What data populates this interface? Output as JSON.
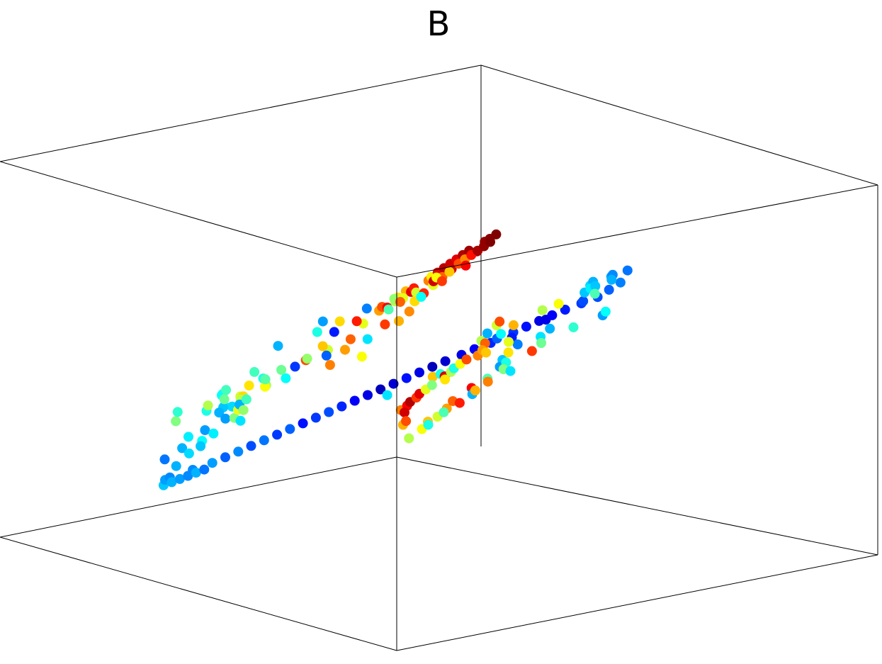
{
  "chart_data": {
    "type": "scatter",
    "title": "B",
    "projection": "3d",
    "box": true,
    "grid": false,
    "colormap": "jet",
    "point_color": "fourth value of each point, from 0 (blue) to 1 (red)",
    "x": [
      0.01,
      0.03,
      0.05,
      0.02,
      0.04,
      0.06,
      0.05,
      0.07,
      0.08,
      0.09,
      0.08,
      0.1,
      0.09,
      0.12,
      0.11,
      0.13,
      0.1,
      0.14,
      0.15,
      0.13,
      0.12,
      0.16,
      0.14,
      0.17,
      0.18,
      0.19,
      0.16,
      0.2,
      0.19,
      0.21,
      0.15,
      0.18,
      0.2,
      0.22,
      0.24,
      0.17,
      0.25,
      0.27,
      0.29,
      0.31,
      0.23,
      0.28,
      0.33,
      0.35,
      0.26,
      0.3,
      0.36,
      0.38,
      0.32,
      0.4,
      0.25,
      0.3,
      0.35,
      0.28,
      0.22,
      0.2,
      0.24,
      0.26,
      0.3,
      0.28,
      0.31,
      0.33,
      0.35,
      0.32,
      0.3,
      0.29,
      0.34,
      0.36,
      0.38,
      0.4,
      0.42,
      0.43,
      0.44,
      0.45,
      0.46,
      0.48,
      0.47,
      0.49,
      0.5,
      0.52,
      0.53,
      0.54,
      0.55,
      0.56,
      0.57,
      0.58,
      0.59,
      0.6,
      0.61,
      0.62,
      0.63,
      0.64,
      0.65,
      0.66,
      0.67,
      0.68,
      0.69,
      0.7,
      0.71,
      0.72,
      0.73,
      0.74,
      0.75,
      0.76,
      0.38,
      0.42,
      0.45,
      0.48,
      0.52,
      0.5,
      0.55,
      0.77,
      0.78,
      0.77,
      0.76,
      0.78,
      0.79,
      0.75,
      0.74,
      0.8,
      0.81,
      0.79,
      0.82,
      0.8,
      0.83,
      0.78,
      0.76,
      0.73,
      0.77,
      0.76,
      0.78,
      0.8,
      0.82,
      0.84,
      0.86,
      0.88,
      0.9,
      0.85,
      0.87,
      0.89,
      0.83,
      0.91,
      0.92,
      0.88,
      0.86,
      0.81,
      0.84,
      0.9,
      0.93,
      0.94,
      0.95,
      0.87,
      0.82,
      0.85,
      0.78,
      0.82,
      0.86,
      0.9,
      0.94,
      0.98,
      0.8,
      0.84,
      0.88,
      0.92,
      0.96,
      0.83,
      0.87,
      0.91,
      0.95,
      0.99,
      0.79,
      0.85,
      0.89,
      0.93,
      0.97,
      0.81,
      0.86,
      0.92,
      0.98,
      1.0,
      0.99,
      0.97,
      1.01,
      0.96,
      1.0,
      0.98,
      1.02,
      0.97,
      0.99,
      1.03,
      1.01,
      0.95,
      1.0,
      1.02,
      0.98,
      1.04,
      1.03,
      1.05,
      1.04,
      1.06,
      1.05,
      1.07,
      1.06,
      1.08,
      1.07,
      1.09,
      1.08,
      1.1,
      1.11,
      1.12,
      0.96,
      0.99,
      1.02,
      1.05,
      1.08,
      1.1,
      1.12,
      1.14
    ],
    "y": [
      0.02,
      0.04,
      0.06,
      0.03,
      0.08,
      0.05,
      0.1,
      0.07,
      0.12,
      0.09,
      0.14,
      0.11,
      0.16,
      0.13,
      0.18,
      0.15,
      0.2,
      0.17,
      0.22,
      0.19,
      0.24,
      0.21,
      0.26,
      0.23,
      0.28,
      0.25,
      0.3,
      0.27,
      0.32,
      0.29,
      0.34,
      0.31,
      0.36,
      0.33,
      0.38,
      0.35,
      0.4,
      0.37,
      0.42,
      0.39,
      0.44,
      0.41,
      0.46,
      0.43,
      0.48,
      0.45,
      0.5,
      0.47,
      0.52,
      0.49,
      0.54,
      0.51,
      0.56,
      0.53,
      0.58,
      0.55,
      0.6,
      0.57,
      0.62,
      0.64,
      0.66,
      0.63,
      0.65,
      0.67,
      0.61,
      0.68,
      0.7,
      0.69,
      0.68,
      0.66,
      0.64,
      0.62,
      0.6,
      0.58,
      0.56,
      0.54,
      0.52,
      0.5,
      0.48,
      0.46,
      0.44,
      0.42,
      0.4,
      0.38,
      0.36,
      0.34,
      0.32,
      0.3,
      0.28,
      0.26,
      0.24,
      0.22,
      0.2,
      0.18,
      0.16,
      0.14,
      0.12,
      0.1,
      0.09,
      0.08,
      0.07,
      0.06,
      0.05,
      0.04,
      0.65,
      0.6,
      0.55,
      0.5,
      0.45,
      0.42,
      0.36,
      0.06,
      0.08,
      0.1,
      0.12,
      0.14,
      0.09,
      0.11,
      0.13,
      0.07,
      0.1,
      0.15,
      0.12,
      0.16,
      0.14,
      0.18,
      0.17,
      0.08,
      0.05,
      0.2,
      0.22,
      0.24,
      0.21,
      0.25,
      0.23,
      0.27,
      0.26,
      0.28,
      0.24,
      0.29,
      0.3,
      0.27,
      0.31,
      0.33,
      0.32,
      0.19,
      0.34,
      0.35,
      0.3,
      0.33,
      0.36,
      0.37,
      0.38,
      0.26,
      0.4,
      0.42,
      0.44,
      0.41,
      0.46,
      0.43,
      0.48,
      0.45,
      0.5,
      0.47,
      0.52,
      0.49,
      0.54,
      0.51,
      0.56,
      0.53,
      0.55,
      0.57,
      0.59,
      0.58,
      0.6,
      0.61,
      0.62,
      0.63,
      0.64,
      0.66,
      0.68,
      0.65,
      0.7,
      0.67,
      0.72,
      0.69,
      0.74,
      0.71,
      0.76,
      0.73,
      0.78,
      0.75,
      0.8,
      0.77,
      0.82,
      0.79,
      0.84,
      0.81,
      0.86,
      0.83,
      0.88,
      0.85,
      0.9,
      0.87,
      0.92,
      0.89,
      0.94,
      0.91,
      0.96,
      0.98,
      0.7,
      0.74,
      0.78,
      0.82,
      0.86,
      0.9,
      0.94,
      0.97
    ],
    "z": [
      0.1,
      0.12,
      0.08,
      0.14,
      0.11,
      0.16,
      0.13,
      0.18,
      0.15,
      0.2,
      0.17,
      0.22,
      0.19,
      0.24,
      0.21,
      0.26,
      0.23,
      0.28,
      0.25,
      0.3,
      0.27,
      0.32,
      0.29,
      0.34,
      0.31,
      0.36,
      0.33,
      0.38,
      0.35,
      0.4,
      0.37,
      0.42,
      0.39,
      0.44,
      0.41,
      0.46,
      0.43,
      0.48,
      0.45,
      0.5,
      0.47,
      0.52,
      0.49,
      0.54,
      0.51,
      0.56,
      0.53,
      0.58,
      0.55,
      0.6,
      0.57,
      0.62,
      0.59,
      0.64,
      0.61,
      0.66,
      0.63,
      0.68,
      0.72,
      0.74,
      0.76,
      0.73,
      0.75,
      0.77,
      0.71,
      0.78,
      0.76,
      0.74,
      0.72,
      0.7,
      0.68,
      0.66,
      0.64,
      0.62,
      0.6,
      0.58,
      0.56,
      0.54,
      0.52,
      0.5,
      0.48,
      0.46,
      0.44,
      0.42,
      0.4,
      0.38,
      0.36,
      0.34,
      0.32,
      0.3,
      0.28,
      0.26,
      0.24,
      0.22,
      0.2,
      0.18,
      0.16,
      0.14,
      0.12,
      0.11,
      0.1,
      0.09,
      0.08,
      0.07,
      0.7,
      0.64,
      0.58,
      0.52,
      0.46,
      0.44,
      0.38,
      0.1,
      0.14,
      0.18,
      0.22,
      0.26,
      0.3,
      0.2,
      0.24,
      0.16,
      0.28,
      0.32,
      0.21,
      0.34,
      0.25,
      0.36,
      0.38,
      0.12,
      0.09,
      0.3,
      0.34,
      0.38,
      0.32,
      0.36,
      0.4,
      0.35,
      0.42,
      0.44,
      0.37,
      0.41,
      0.46,
      0.39,
      0.43,
      0.48,
      0.45,
      0.33,
      0.5,
      0.47,
      0.4,
      0.44,
      0.52,
      0.49,
      0.54,
      0.38,
      0.52,
      0.56,
      0.6,
      0.54,
      0.58,
      0.62,
      0.57,
      0.64,
      0.61,
      0.66,
      0.63,
      0.68,
      0.65,
      0.7,
      0.67,
      0.72,
      0.69,
      0.74,
      0.71,
      0.76,
      0.73,
      0.78,
      0.75,
      0.8,
      0.78,
      0.8,
      0.82,
      0.79,
      0.84,
      0.81,
      0.86,
      0.83,
      0.88,
      0.85,
      0.9,
      0.87,
      0.92,
      0.89,
      0.94,
      0.91,
      0.96,
      0.93,
      0.98,
      0.95,
      1.0,
      0.97,
      1.02,
      0.99,
      1.04,
      1.01,
      1.06,
      1.03,
      1.08,
      1.05,
      1.1,
      1.12,
      0.82,
      0.86,
      0.9,
      0.94,
      0.98,
      1.02,
      1.06,
      1.1
    ],
    "c": [
      0.7,
      0.8,
      0.55,
      0.92,
      0.62,
      0.75,
      0.4,
      0.88,
      0.68,
      0.95,
      0.58,
      0.82,
      0.45,
      0.9,
      0.72,
      0.6,
      0.85,
      0.5,
      0.78,
      0.65,
      0.3,
      0.92,
      0.7,
      0.55,
      0.88,
      0.4,
      0.75,
      0.62,
      0.45,
      0.8,
      0.35,
      0.68,
      0.5,
      0.72,
      0.28,
      0.6,
      0.4,
      0.78,
      0.32,
      0.55,
      0.82,
      0.38,
      0.65,
      0.3,
      0.48,
      0.7,
      0.25,
      0.58,
      0.35,
      0.8,
      0.42,
      0.55,
      0.3,
      0.62,
      0.28,
      0.45,
      0.38,
      0.32,
      0.32,
      0.3,
      0.28,
      0.34,
      0.3,
      0.26,
      0.36,
      0.24,
      0.25,
      0.22,
      0.2,
      0.18,
      0.15,
      0.12,
      0.1,
      0.14,
      0.18,
      0.22,
      0.16,
      0.12,
      0.1,
      0.08,
      0.06,
      0.1,
      0.14,
      0.08,
      0.06,
      0.1,
      0.12,
      0.16,
      0.2,
      0.18,
      0.14,
      0.22,
      0.18,
      0.24,
      0.2,
      0.26,
      0.22,
      0.28,
      0.24,
      0.3,
      0.26,
      0.28,
      0.3,
      0.32,
      0.2,
      0.1,
      0.15,
      0.75,
      0.4,
      0.68,
      0.35,
      0.26,
      0.3,
      0.34,
      0.38,
      0.28,
      0.42,
      0.32,
      0.36,
      0.24,
      0.5,
      0.4,
      0.3,
      0.55,
      0.36,
      0.48,
      0.44,
      0.26,
      0.28,
      0.35,
      0.52,
      0.44,
      0.28,
      0.6,
      0.38,
      0.5,
      0.42,
      0.65,
      0.32,
      0.56,
      0.46,
      0.36,
      0.58,
      0.4,
      0.62,
      0.3,
      0.48,
      0.54,
      0.34,
      0.66,
      0.44,
      0.38,
      0.52,
      0.3,
      0.75,
      0.22,
      0.68,
      0.18,
      0.8,
      0.3,
      0.62,
      0.15,
      0.72,
      0.4,
      0.58,
      0.85,
      0.35,
      0.66,
      0.78,
      0.28,
      0.7,
      0.45,
      0.82,
      0.25,
      0.6,
      0.38,
      0.74,
      0.52,
      0.72,
      0.8,
      0.55,
      0.88,
      0.65,
      0.78,
      0.9,
      0.6,
      0.85,
      0.58,
      0.92,
      0.7,
      0.62,
      0.82,
      0.68,
      0.75,
      0.88,
      0.64,
      0.8,
      0.9,
      0.74,
      0.94,
      0.86,
      0.92,
      0.96,
      0.9,
      0.98,
      0.95,
      1.0,
      0.97,
      0.99,
      1.0,
      0.66,
      0.84,
      0.6,
      0.78,
      0.92,
      0.88,
      0.96,
      0.98
    ]
  }
}
